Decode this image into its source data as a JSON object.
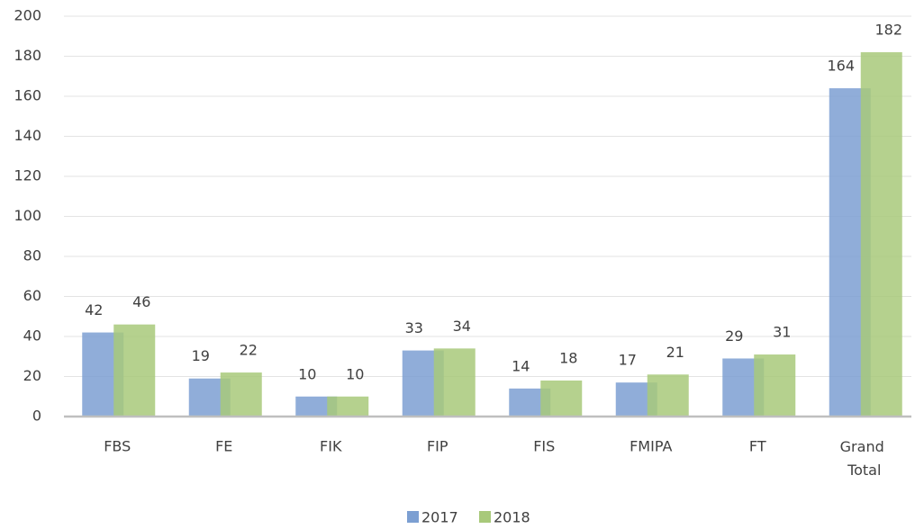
{
  "chart_data": {
    "type": "bar",
    "categories": [
      "FBS",
      "FE",
      "FIK",
      "FIP",
      "FIS",
      "FMIPA",
      "FT",
      "Grand Total"
    ],
    "series": [
      {
        "name": "2017",
        "color": "#7c9fd2",
        "values": [
          42,
          19,
          10,
          33,
          14,
          17,
          29,
          164
        ]
      },
      {
        "name": "2018",
        "color": "#a8c97a",
        "values": [
          46,
          22,
          10,
          34,
          18,
          21,
          31,
          182
        ]
      }
    ],
    "ylim": [
      0,
      200
    ],
    "yticks": [
      0,
      20,
      40,
      60,
      80,
      100,
      120,
      140,
      160,
      180,
      200
    ],
    "grid": true,
    "legend": "bottom",
    "data_labels": true
  }
}
